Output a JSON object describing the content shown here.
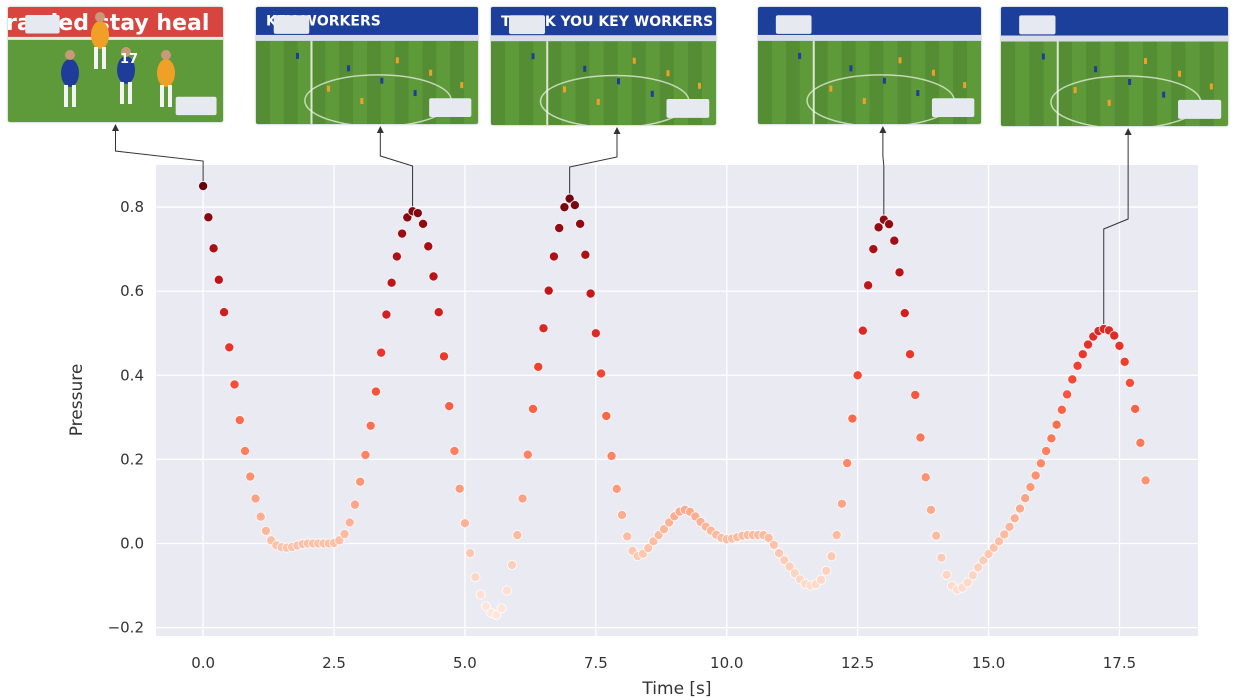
{
  "chart_data": {
    "type": "scatter",
    "title": "",
    "xlabel": "Time [s]",
    "ylabel": "Pressure",
    "xlim": [
      -0.9,
      19.0
    ],
    "ylim": [
      -0.22,
      0.9
    ],
    "xticks": [
      0.0,
      2.5,
      5.0,
      7.5,
      10.0,
      12.5,
      15.0,
      17.5
    ],
    "xtick_labels": [
      "0.0",
      "2.5",
      "5.0",
      "7.5",
      "10.0",
      "12.5",
      "15.0",
      "17.5"
    ],
    "yticks": [
      -0.2,
      0.0,
      0.2,
      0.4,
      0.6,
      0.8
    ],
    "ytick_labels": [
      "−0.2",
      "0.0",
      "0.2",
      "0.4",
      "0.6",
      "0.8"
    ],
    "grid": true,
    "background": "#eaeaf2",
    "colormap": "Reds",
    "x_range": [
      0.0,
      18.0
    ],
    "sample_step": 0.1,
    "points": [
      [
        0.0,
        0.85
      ],
      [
        0.4,
        0.55
      ],
      [
        0.8,
        0.22
      ],
      [
        1.2,
        0.03
      ],
      [
        1.6,
        -0.01
      ],
      [
        2.0,
        0.0
      ],
      [
        2.4,
        0.0
      ],
      [
        2.8,
        0.05
      ],
      [
        3.2,
        0.28
      ],
      [
        3.6,
        0.62
      ],
      [
        4.0,
        0.79
      ],
      [
        4.2,
        0.76
      ],
      [
        4.5,
        0.55
      ],
      [
        4.8,
        0.22
      ],
      [
        5.2,
        -0.08
      ],
      [
        5.6,
        -0.17
      ],
      [
        6.0,
        0.02
      ],
      [
        6.4,
        0.42
      ],
      [
        6.8,
        0.75
      ],
      [
        7.0,
        0.82
      ],
      [
        7.2,
        0.76
      ],
      [
        7.5,
        0.5
      ],
      [
        7.9,
        0.13
      ],
      [
        8.3,
        -0.03
      ],
      [
        8.7,
        0.02
      ],
      [
        9.2,
        0.08
      ],
      [
        9.6,
        0.04
      ],
      [
        10.0,
        0.01
      ],
      [
        10.4,
        0.02
      ],
      [
        10.7,
        0.02
      ],
      [
        11.1,
        -0.04
      ],
      [
        11.6,
        -0.1
      ],
      [
        12.1,
        0.02
      ],
      [
        12.5,
        0.4
      ],
      [
        12.8,
        0.7
      ],
      [
        13.0,
        0.77
      ],
      [
        13.2,
        0.72
      ],
      [
        13.5,
        0.45
      ],
      [
        13.9,
        0.08
      ],
      [
        14.4,
        -0.11
      ],
      [
        14.9,
        -0.04
      ],
      [
        15.5,
        0.06
      ],
      [
        16.2,
        0.25
      ],
      [
        16.8,
        0.45
      ],
      [
        17.2,
        0.51
      ],
      [
        17.5,
        0.47
      ],
      [
        17.8,
        0.32
      ],
      [
        18.0,
        0.15
      ]
    ],
    "annotations": [
      {
        "name": "thumbnail-1",
        "point": [
          0.0,
          0.85
        ],
        "scene": "close"
      },
      {
        "name": "thumbnail-2",
        "point": [
          4.0,
          0.79
        ],
        "scene": "wide"
      },
      {
        "name": "thumbnail-3",
        "point": [
          7.0,
          0.82
        ],
        "scene": "wide"
      },
      {
        "name": "thumbnail-4",
        "point": [
          13.0,
          0.77
        ],
        "scene": "wide"
      },
      {
        "name": "thumbnail-5",
        "point": [
          17.2,
          0.51
        ],
        "scene": "wide"
      }
    ]
  },
  "thumbnails": {
    "banners": [
      {
        "text": "rarded stay heal"
      },
      {
        "text": "KEY WORKERS"
      },
      {
        "text": "THANK YOU  KEY WORKERS"
      },
      {
        "text": ""
      },
      {
        "text": ""
      }
    ],
    "jersey_number": "17",
    "colors": {
      "pitch_light": "#5f9a3a",
      "pitch_dark": "#4d8530",
      "stand_blue": "#1d3f9c",
      "banner_red": "#d8453f",
      "player_blue": "#1f3c9a",
      "player_orange": "#f0a026",
      "overlay_box": "#e6e9ef"
    }
  }
}
